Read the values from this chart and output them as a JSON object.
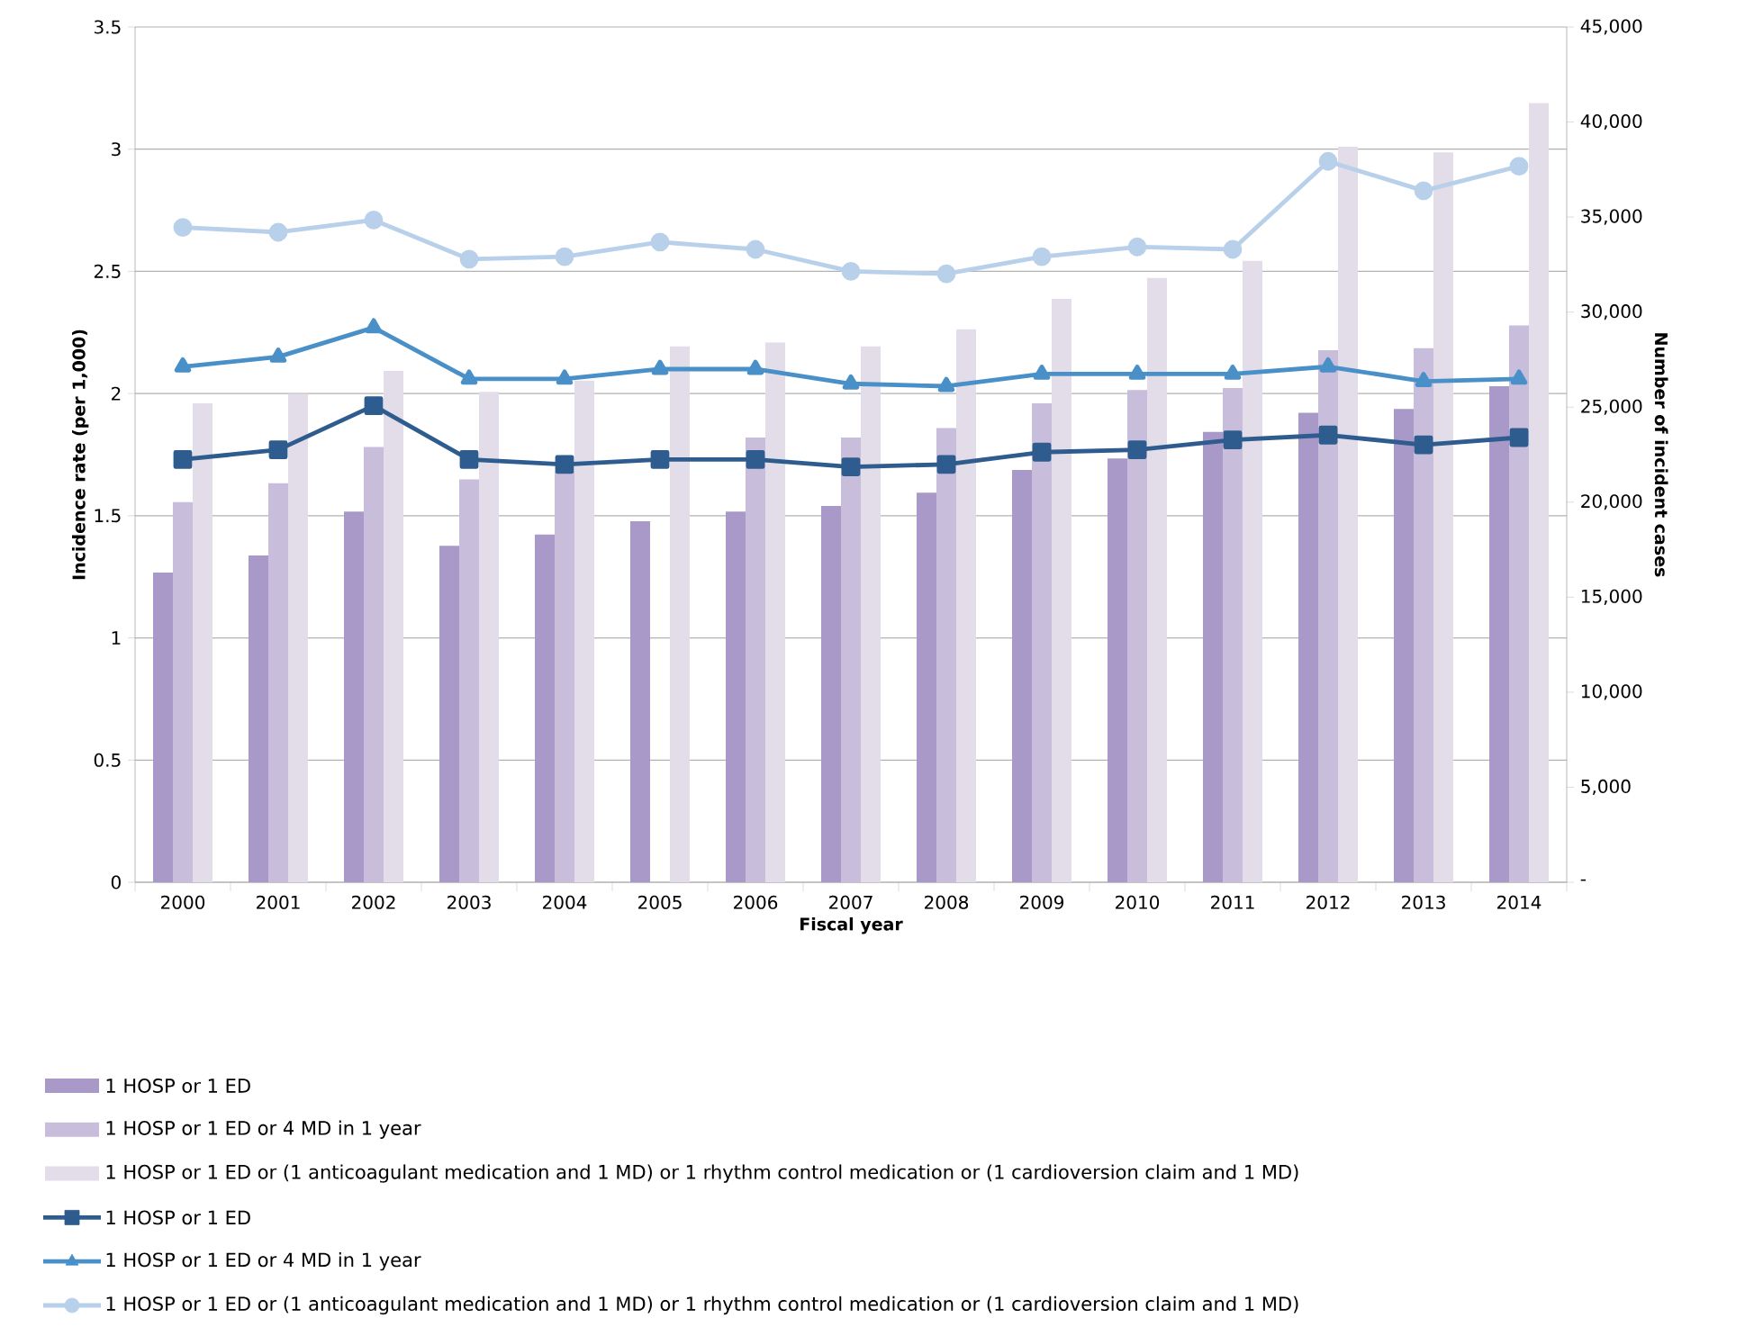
{
  "chart_data": {
    "type": "bar",
    "xlabel": "Fiscal year",
    "ylabel": "Incidence rate (per 1,000)",
    "y2label": "Number of incident cases",
    "categories": [
      "2000",
      "2001",
      "2002",
      "2003",
      "2004",
      "2005",
      "2006",
      "2007",
      "2008",
      "2009",
      "2010",
      "2011",
      "2012",
      "2013",
      "2014"
    ],
    "ylim": [
      0,
      3.5
    ],
    "yticks": [
      0,
      0.5,
      1,
      1.5,
      2,
      2.5,
      3,
      3.5
    ],
    "y2lim": [
      0,
      45000
    ],
    "y2ticks": [
      {
        "value": 0,
        "label": "-"
      },
      {
        "value": 5000,
        "label": "5,000"
      },
      {
        "value": 10000,
        "label": "10,000"
      },
      {
        "value": 15000,
        "label": "15,000"
      },
      {
        "value": 20000,
        "label": "20,000"
      },
      {
        "value": 25000,
        "label": "25,000"
      },
      {
        "value": 30000,
        "label": "30,000"
      },
      {
        "value": 35000,
        "label": "35,000"
      },
      {
        "value": 40000,
        "label": "40,000"
      },
      {
        "value": 45000,
        "label": "45,000"
      }
    ],
    "grid": "y",
    "legend": "bottom",
    "series": [
      {
        "name": "1 HOSP or 1 ED",
        "axis": "y2",
        "color": "#a899c8",
        "values": [
          16300,
          17200,
          19500,
          17700,
          18300,
          19000,
          19500,
          19800,
          20500,
          21700,
          22300,
          23700,
          24700,
          24900,
          26100
        ]
      },
      {
        "name": "1 HOSP or 1 ED or 4 MD in 1 year",
        "axis": "y2",
        "color": "#c8bedc",
        "values": [
          20000,
          21000,
          22900,
          21200,
          21600,
          null,
          23400,
          23400,
          23900,
          25200,
          25900,
          26000,
          28000,
          28100,
          29300
        ]
      },
      {
        "name": "1 HOSP or 1 ED or (1 anticoagulant medication and 1 MD) or 1 rhythm control medication or (1 cardioversion claim and 1 MD)",
        "axis": "y2",
        "color": "#e2dde9",
        "values": [
          25200,
          25700,
          26900,
          25800,
          26400,
          28200,
          28400,
          28200,
          29100,
          30700,
          31800,
          32700,
          38700,
          38400,
          41000
        ]
      },
      {
        "name": "1 HOSP or 1 ED",
        "type": "line",
        "marker": "square",
        "color": "#2e5c8e",
        "values": [
          1.73,
          1.77,
          1.95,
          1.73,
          1.71,
          1.73,
          1.73,
          1.7,
          1.71,
          1.76,
          1.77,
          1.81,
          1.83,
          1.79,
          1.82
        ]
      },
      {
        "name": "1 HOSP or 1 ED or 4 MD in 1 year",
        "type": "line",
        "marker": "triangle",
        "color": "#4a90c8",
        "values": [
          2.11,
          2.15,
          2.27,
          2.06,
          2.06,
          2.1,
          2.1,
          2.04,
          2.03,
          2.08,
          2.08,
          2.08,
          2.11,
          2.05,
          2.06
        ]
      },
      {
        "name": "1 HOSP or 1 ED or (1 anticoagulant medication and 1 MD) or 1 rhythm control medication or (1 cardioversion claim and 1 MD)",
        "type": "line",
        "marker": "circle",
        "color": "#b8d0ea",
        "values": [
          2.68,
          2.66,
          2.71,
          2.55,
          2.56,
          2.62,
          2.59,
          2.5,
          2.49,
          2.56,
          2.6,
          2.59,
          2.95,
          2.83,
          2.93
        ]
      }
    ]
  }
}
